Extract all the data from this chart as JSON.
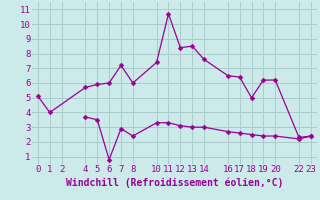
{
  "background_color": "#cceaea",
  "grid_color": "#aacccc",
  "line_color": "#990099",
  "xlabel": "Windchill (Refroidissement éolien,°C)",
  "xlim": [
    -0.5,
    23.5
  ],
  "ylim": [
    0.5,
    11.5
  ],
  "xticks": [
    0,
    1,
    2,
    4,
    5,
    6,
    7,
    8,
    10,
    11,
    12,
    13,
    14,
    16,
    17,
    18,
    19,
    20,
    22,
    23
  ],
  "yticks": [
    1,
    2,
    3,
    4,
    5,
    6,
    7,
    8,
    9,
    10,
    11
  ],
  "line1_x": [
    0,
    1,
    4,
    5,
    6,
    7,
    8,
    10,
    11,
    12,
    13,
    14,
    16,
    17,
    18,
    19,
    20,
    22,
    23
  ],
  "line1_y": [
    5.1,
    4.0,
    5.7,
    5.9,
    6.0,
    7.2,
    6.0,
    7.4,
    10.7,
    8.4,
    8.5,
    7.6,
    6.5,
    6.4,
    5.0,
    6.2,
    6.2,
    2.3,
    2.4
  ],
  "line2_x": [
    4,
    5,
    6,
    7,
    8,
    10,
    11,
    12,
    13,
    14,
    16,
    17,
    18,
    19,
    20,
    22,
    23
  ],
  "line2_y": [
    3.7,
    3.5,
    0.8,
    2.9,
    2.4,
    3.3,
    3.3,
    3.1,
    3.0,
    3.0,
    2.7,
    2.6,
    2.5,
    2.4,
    2.4,
    2.2,
    2.4
  ],
  "marker_size": 2.5,
  "linewidth": 0.9,
  "tick_fontsize": 6.5,
  "xlabel_fontsize": 7.0
}
